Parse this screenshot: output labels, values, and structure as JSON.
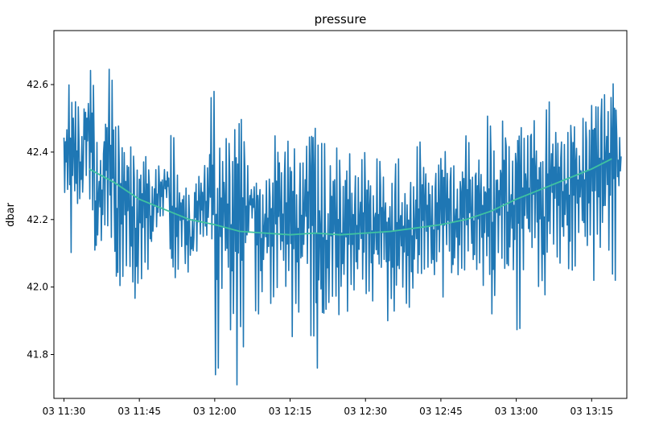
{
  "chart_data": {
    "type": "line",
    "title": "pressure",
    "xlabel": "",
    "ylabel": "dbar",
    "x_ticks": [
      "03 11:30",
      "03 11:45",
      "03 12:00",
      "03 12:15",
      "03 12:30",
      "03 12:45",
      "03 13:00",
      "03 13:15"
    ],
    "y_ticks": [
      "41.8",
      "42.0",
      "42.2",
      "42.4",
      "42.6"
    ],
    "xlim": [
      "11:28",
      "13:22"
    ],
    "ylim": [
      41.67,
      42.76
    ],
    "grid": false,
    "legend": "none",
    "series": [
      {
        "color": "#1f77b4",
        "style": "noisy-oscillating",
        "x": [
          "11:30",
          "11:31",
          "11:32",
          "11:33",
          "11:34",
          "11:35",
          "11:36",
          "11:37",
          "11:38",
          "11:39",
          "11:40",
          "11:41",
          "11:42",
          "11:43",
          "11:44",
          "11:45",
          "11:46",
          "11:47",
          "11:48",
          "11:49",
          "11:50",
          "11:51",
          "11:52",
          "11:53",
          "11:54",
          "11:55",
          "11:56",
          "11:57",
          "11:58",
          "11:59",
          "12:00",
          "12:01",
          "12:02",
          "12:03",
          "12:04",
          "12:05",
          "12:06",
          "12:07",
          "12:08",
          "12:09",
          "12:10",
          "12:11",
          "12:12",
          "12:13",
          "12:14",
          "12:15",
          "12:16",
          "12:17",
          "12:18",
          "12:19",
          "12:20",
          "12:21",
          "12:22",
          "12:23",
          "12:24",
          "12:25",
          "12:26",
          "12:27",
          "12:28",
          "12:29",
          "12:30",
          "12:31",
          "12:32",
          "12:33",
          "12:34",
          "12:35",
          "12:36",
          "12:37",
          "12:38",
          "12:39",
          "12:40",
          "12:41",
          "12:42",
          "12:43",
          "12:44",
          "12:45",
          "12:46",
          "12:47",
          "12:48",
          "12:49",
          "12:50",
          "12:51",
          "12:52",
          "12:53",
          "12:54",
          "12:55",
          "12:56",
          "12:57",
          "12:58",
          "12:59",
          "13:00",
          "13:01",
          "13:02",
          "13:03",
          "13:04",
          "13:05",
          "13:06",
          "13:07",
          "13:08",
          "13:09",
          "13:10",
          "13:11",
          "13:12",
          "13:13",
          "13:14",
          "13:15",
          "13:16",
          "13:17",
          "13:18",
          "13:19",
          "13:20"
        ],
        "min": [
          42.28,
          42.09,
          42.21,
          42.25,
          42.33,
          42.22,
          42.04,
          42.12,
          42.18,
          42.1,
          41.93,
          42.0,
          42.06,
          41.98,
          41.93,
          42.02,
          42.05,
          42.1,
          42.16,
          42.21,
          42.26,
          41.98,
          42.02,
          42.12,
          42.03,
          42.08,
          42.1,
          42.15,
          42.12,
          42.08,
          41.74,
          41.98,
          42.0,
          41.85,
          41.71,
          41.8,
          42.09,
          42.2,
          41.92,
          41.95,
          42.06,
          41.95,
          41.99,
          42.05,
          41.97,
          41.85,
          41.92,
          42.02,
          42.04,
          41.85,
          41.7,
          41.8,
          41.93,
          41.97,
          41.88,
          41.97,
          41.92,
          41.99,
          42.0,
          41.98,
          41.98,
          41.94,
          42.01,
          42.05,
          41.9,
          41.91,
          41.95,
          41.99,
          41.94,
          41.95,
          41.98,
          42.04,
          42.05,
          42.0,
          42.06,
          41.97,
          42.1,
          41.98,
          42.02,
          42.05,
          42.07,
          42.03,
          42.05,
          42.0,
          41.99,
          41.88,
          42.1,
          42.05,
          41.98,
          42.02,
          41.87,
          42.02,
          42.1,
          42.11,
          42.0,
          41.95,
          42.05,
          42.12,
          42.07,
          42.1,
          42.0,
          42.05,
          42.15,
          42.09,
          42.11,
          42.02,
          42.1,
          42.13,
          42.09,
          42.02,
          42.28
        ],
        "max": [
          42.49,
          42.63,
          42.55,
          42.45,
          42.57,
          42.67,
          42.43,
          42.4,
          42.55,
          42.65,
          42.48,
          42.45,
          42.43,
          42.42,
          42.35,
          42.4,
          42.42,
          42.3,
          42.36,
          42.34,
          42.35,
          42.45,
          42.35,
          42.3,
          42.3,
          42.2,
          42.34,
          42.33,
          42.36,
          42.58,
          42.38,
          42.43,
          42.44,
          42.39,
          42.6,
          42.53,
          42.36,
          42.3,
          42.38,
          42.29,
          42.32,
          42.35,
          42.48,
          42.34,
          42.44,
          42.47,
          42.3,
          42.37,
          42.45,
          42.59,
          42.48,
          42.43,
          42.24,
          42.4,
          42.42,
          42.3,
          42.43,
          42.31,
          42.33,
          42.4,
          42.38,
          42.31,
          42.38,
          42.34,
          42.3,
          42.32,
          42.38,
          42.29,
          42.29,
          42.31,
          42.43,
          42.4,
          42.35,
          42.3,
          42.37,
          42.46,
          42.35,
          42.36,
          42.32,
          42.4,
          42.45,
          42.33,
          42.41,
          42.36,
          42.51,
          42.41,
          42.37,
          42.53,
          42.42,
          42.4,
          42.58,
          42.48,
          42.45,
          42.52,
          42.45,
          42.38,
          42.55,
          42.48,
          42.47,
          42.43,
          42.48,
          42.55,
          42.42,
          42.5,
          42.48,
          42.62,
          42.55,
          42.57,
          42.58,
          42.7,
          42.45
        ]
      },
      {
        "color": "#3fc2a0",
        "style": "smooth-trend",
        "x": [
          "11:35",
          "11:40",
          "11:45",
          "11:50",
          "11:55",
          "12:00",
          "12:05",
          "12:10",
          "12:15",
          "12:20",
          "12:25",
          "12:30",
          "12:35",
          "12:40",
          "12:45",
          "12:50",
          "12:55",
          "13:00",
          "13:05",
          "13:10",
          "13:15",
          "13:19"
        ],
        "values": [
          42.35,
          42.31,
          42.26,
          42.23,
          42.2,
          42.185,
          42.165,
          42.16,
          42.155,
          42.16,
          42.155,
          42.16,
          42.165,
          42.175,
          42.185,
          42.2,
          42.225,
          42.26,
          42.29,
          42.32,
          42.35,
          42.38
        ]
      }
    ]
  }
}
